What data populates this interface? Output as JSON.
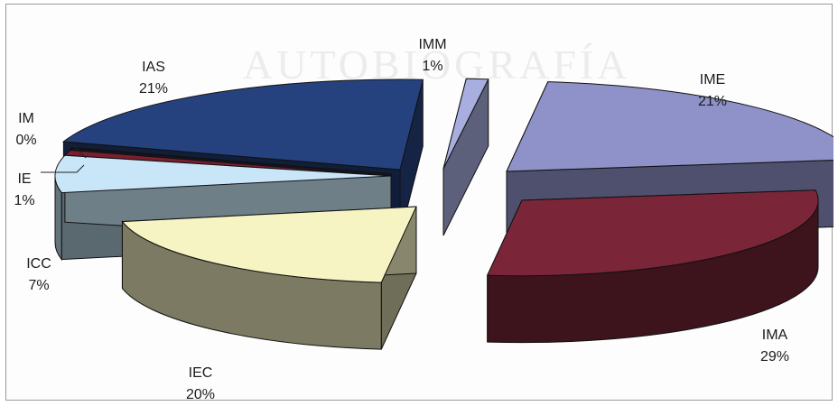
{
  "watermark_text": "AUTOBIOGRAFÍA",
  "chart_data": {
    "type": "pie",
    "title": "",
    "exploded": true,
    "three_d": true,
    "categories": [
      "IME",
      "IMA",
      "IEC",
      "ICC",
      "IE",
      "IM",
      "IAS",
      "IMM"
    ],
    "values": [
      21,
      29,
      20,
      7,
      1,
      0,
      21,
      1
    ],
    "labels": [
      "21%",
      "29%",
      "20%",
      "7%",
      "1%",
      "0%",
      "21%",
      "1%"
    ],
    "colors": [
      "#8e92c8",
      "#7a2638",
      "#f7f4c4",
      "#c9e6f8",
      "#7a1e30",
      "#2c2c4a",
      "#26427e",
      "#a9aee0"
    ],
    "legend": "none"
  }
}
